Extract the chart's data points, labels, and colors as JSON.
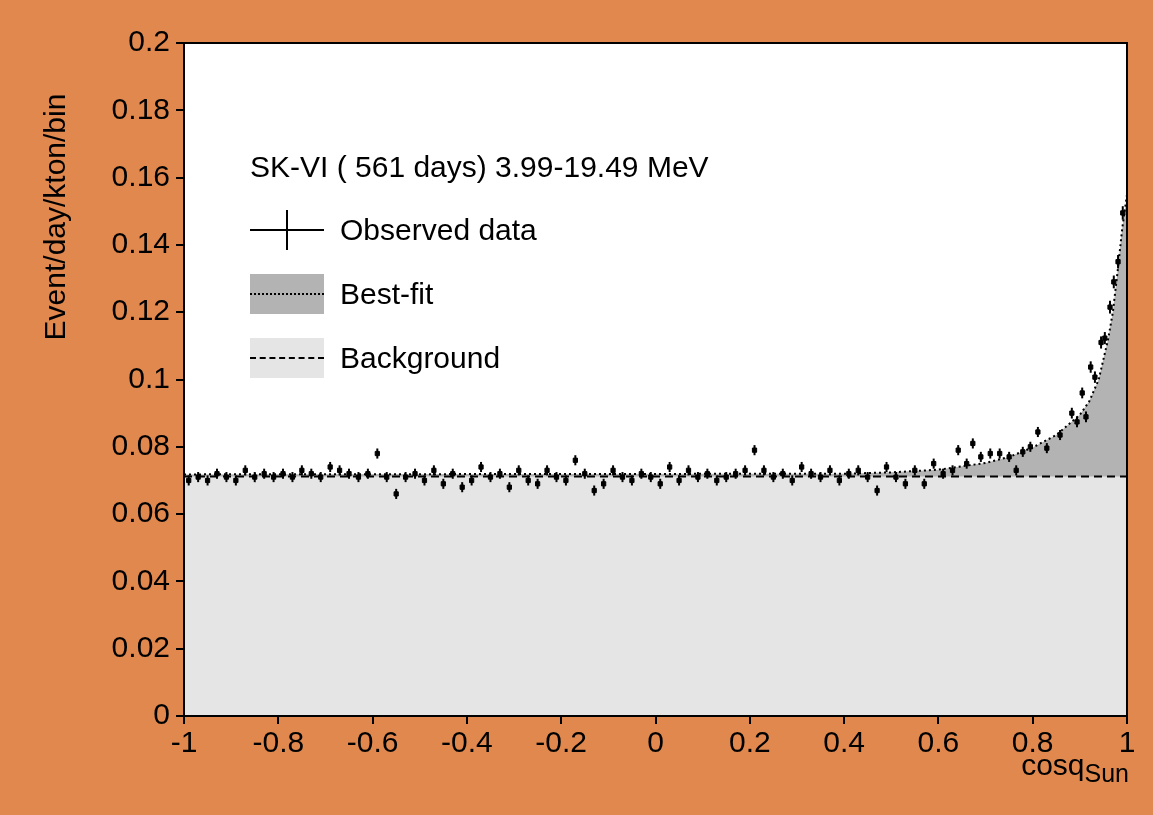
{
  "chart_data": {
    "type": "scatter",
    "legend_title": "SK-VI ( 561 days) 3.99-19.49 MeV",
    "xlabel": "cosq$_{Sun}$",
    "ylabel": "Event/day/kton/bin",
    "xlim": [
      -1,
      1
    ],
    "xticks": [
      -1,
      -0.8,
      -0.6,
      -0.4,
      -0.2,
      0,
      0.2,
      0.4,
      0.6,
      0.8,
      1
    ],
    "ylim": [
      0,
      0.2
    ],
    "yticks": [
      0,
      0.02,
      0.04,
      0.06,
      0.08,
      0.1,
      0.12,
      0.14,
      0.16,
      0.18,
      0.2
    ],
    "legend": "top left",
    "marker": "none",
    "series": [
      {
        "name": "Best-fit",
        "type": "area",
        "color": "#b3b3b3",
        "line_style": "dotted",
        "x": [
          -1,
          0.4,
          0.5,
          0.6,
          0.7,
          0.75,
          0.8,
          0.85,
          0.9,
          0.92,
          0.94,
          0.96,
          0.97,
          0.98,
          0.99,
          1
        ],
        "values": [
          0.0718,
          0.072,
          0.0724,
          0.0732,
          0.0752,
          0.077,
          0.0798,
          0.0835,
          0.0895,
          0.0935,
          0.1,
          0.112,
          0.12,
          0.132,
          0.145,
          0.155
        ]
      },
      {
        "name": "Background",
        "type": "area",
        "color": "#e5e5e5",
        "line_style": "dashed",
        "x": [
          -1,
          1
        ],
        "values": [
          0.0712,
          0.0712
        ]
      },
      {
        "name": "Observed data",
        "color": "#000000",
        "marker": "square",
        "x": [
          -0.99,
          -0.97,
          -0.95,
          -0.93,
          -0.91,
          -0.89,
          -0.87,
          -0.85,
          -0.83,
          -0.81,
          -0.79,
          -0.77,
          -0.75,
          -0.73,
          -0.71,
          -0.69,
          -0.67,
          -0.65,
          -0.63,
          -0.61,
          -0.59,
          -0.57,
          -0.55,
          -0.53,
          -0.51,
          -0.49,
          -0.47,
          -0.45,
          -0.43,
          -0.41,
          -0.39,
          -0.37,
          -0.35,
          -0.33,
          -0.31,
          -0.29,
          -0.27,
          -0.25,
          -0.23,
          -0.21,
          -0.19,
          -0.17,
          -0.15,
          -0.13,
          -0.11,
          -0.09,
          -0.07,
          -0.05,
          -0.03,
          -0.01,
          0.01,
          0.03,
          0.05,
          0.07,
          0.09,
          0.11,
          0.13,
          0.15,
          0.17,
          0.19,
          0.21,
          0.23,
          0.25,
          0.27,
          0.29,
          0.31,
          0.33,
          0.35,
          0.37,
          0.39,
          0.41,
          0.43,
          0.45,
          0.47,
          0.49,
          0.51,
          0.53,
          0.55,
          0.57,
          0.59,
          0.61,
          0.63,
          0.642,
          0.66,
          0.673,
          0.69,
          0.71,
          0.73,
          0.75,
          0.765,
          0.779,
          0.795,
          0.811,
          0.83,
          0.858,
          0.883,
          0.894,
          0.905,
          0.913,
          0.923,
          0.932,
          0.945,
          0.953,
          0.964,
          0.972,
          0.981,
          0.991
        ],
        "values": [
          0.07,
          0.071,
          0.07,
          0.072,
          0.071,
          0.07,
          0.073,
          0.071,
          0.072,
          0.071,
          0.072,
          0.071,
          0.073,
          0.072,
          0.071,
          0.074,
          0.073,
          0.072,
          0.071,
          0.072,
          0.078,
          0.071,
          0.066,
          0.071,
          0.072,
          0.07,
          0.073,
          0.069,
          0.072,
          0.068,
          0.07,
          0.074,
          0.071,
          0.072,
          0.068,
          0.073,
          0.07,
          0.069,
          0.073,
          0.071,
          0.07,
          0.076,
          0.072,
          0.067,
          0.069,
          0.073,
          0.071,
          0.07,
          0.072,
          0.071,
          0.069,
          0.074,
          0.07,
          0.073,
          0.071,
          0.072,
          0.07,
          0.071,
          0.072,
          0.073,
          0.079,
          0.073,
          0.071,
          0.072,
          0.07,
          0.074,
          0.072,
          0.071,
          0.073,
          0.07,
          0.072,
          0.073,
          0.071,
          0.067,
          0.074,
          0.071,
          0.069,
          0.073,
          0.069,
          0.075,
          0.072,
          0.073,
          0.079,
          0.075,
          0.081,
          0.077,
          0.078,
          0.078,
          0.077,
          0.073,
          0.0785,
          0.08,
          0.0844,
          0.0796,
          0.0835,
          0.09,
          0.0874,
          0.096,
          0.0889,
          0.1037,
          0.1007,
          0.111,
          0.1123,
          0.1215,
          0.129,
          0.135,
          0.1495
        ],
        "errors": [
          0.0015,
          0.0015,
          0.0015,
          0.0015,
          0.0015,
          0.0015,
          0.0015,
          0.0015,
          0.0015,
          0.0015,
          0.0015,
          0.0015,
          0.0015,
          0.0015,
          0.0015,
          0.0015,
          0.0015,
          0.0015,
          0.0015,
          0.0015,
          0.0015,
          0.0015,
          0.0015,
          0.0015,
          0.0015,
          0.0015,
          0.0015,
          0.0015,
          0.0015,
          0.0015,
          0.0015,
          0.0015,
          0.0015,
          0.0015,
          0.0015,
          0.0015,
          0.0015,
          0.0015,
          0.0015,
          0.0015,
          0.0015,
          0.0015,
          0.0015,
          0.0015,
          0.0015,
          0.0015,
          0.0015,
          0.0015,
          0.0015,
          0.0015,
          0.0015,
          0.0015,
          0.0015,
          0.0015,
          0.0015,
          0.0015,
          0.0015,
          0.0015,
          0.0015,
          0.0015,
          0.0015,
          0.0015,
          0.0015,
          0.0015,
          0.0015,
          0.0015,
          0.0015,
          0.0015,
          0.0015,
          0.0015,
          0.0015,
          0.0015,
          0.0015,
          0.0015,
          0.0015,
          0.0015,
          0.0015,
          0.0015,
          0.0015,
          0.0015,
          0.0015,
          0.0015,
          0.0015,
          0.0015,
          0.0015,
          0.0015,
          0.0015,
          0.0015,
          0.0015,
          0.0015,
          0.0015,
          0.0015,
          0.0015,
          0.0015,
          0.0015,
          0.0016,
          0.0016,
          0.0016,
          0.0016,
          0.0017,
          0.0017,
          0.0018,
          0.0018,
          0.0019,
          0.0019,
          0.002,
          0.002
        ]
      }
    ]
  }
}
